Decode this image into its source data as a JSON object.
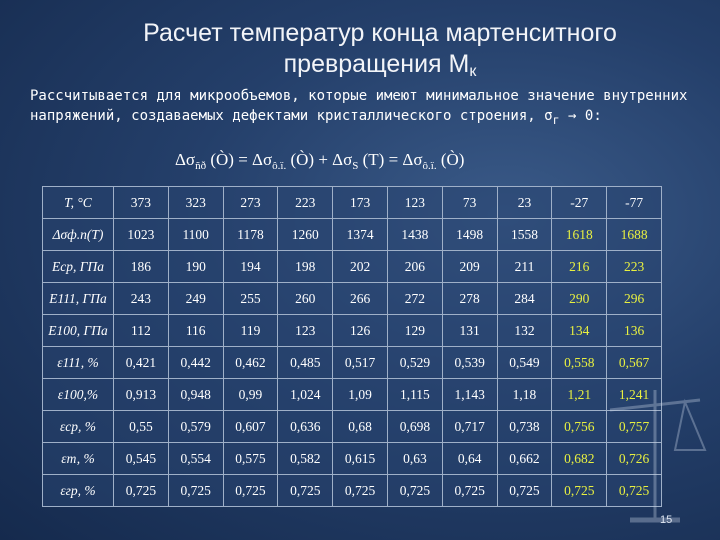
{
  "title_line1": "Расчет температур конца мартенситного",
  "title_line2": "превращения М",
  "title_sub": "к",
  "intro": "Рассчитывается для микрообъемов, которые имеют минимальное значение внутренних напряжений, создаваемых дефектами кристаллического строения, σ",
  "intro_sub": "г",
  "intro_tail": " → 0:",
  "formula": {
    "lhs": "Δσ",
    "lhs_sub": "ñð",
    "arg1": "(Ò) = Δσ",
    "sub2": "ô.ï.",
    "arg2": "(Ò) + Δσ",
    "sub3": "S",
    "arg3": "(T) = Δσ",
    "sub4": "ô.ï.",
    "arg4": "(Ò)"
  },
  "table": {
    "rows": [
      {
        "label": "T, °C",
        "cells": [
          "373",
          "323",
          "273",
          "223",
          "173",
          "123",
          "73",
          "23",
          "-27",
          "-77"
        ]
      },
      {
        "label": "Δσф.п(T)",
        "cells": [
          "1023",
          "1100",
          "1178",
          "1260",
          "1374",
          "1438",
          "1498",
          "1558",
          "1618",
          "1688"
        ]
      },
      {
        "label": "Eср, ГПа",
        "cells": [
          "186",
          "190",
          "194",
          "198",
          "202",
          "206",
          "209",
          "211",
          "216",
          "223"
        ]
      },
      {
        "label": "E111, ГПа",
        "cells": [
          "243",
          "249",
          "255",
          "260",
          "266",
          "272",
          "278",
          "284",
          "290",
          "296"
        ]
      },
      {
        "label": "E100, ГПа",
        "cells": [
          "112",
          "116",
          "119",
          "123",
          "126",
          "129",
          "131",
          "132",
          "134",
          "136"
        ]
      },
      {
        "label": "ε111, %",
        "cells": [
          "0,421",
          "0,442",
          "0,462",
          "0,485",
          "0,517",
          "0,529",
          "0,539",
          "0,549",
          "0,558",
          "0,567"
        ]
      },
      {
        "label": "ε100,%",
        "cells": [
          "0,913",
          "0,948",
          "0,99",
          "1,024",
          "1,09",
          "1,115",
          "1,143",
          "1,18",
          "1,21",
          "1,241"
        ]
      },
      {
        "label": "εср, %",
        "cells": [
          "0,55",
          "0,579",
          "0,607",
          "0,636",
          "0,68",
          "0,698",
          "0,717",
          "0,738",
          "0,756",
          "0,757"
        ]
      },
      {
        "label": "εт, %",
        "cells": [
          "0,545",
          "0,554",
          "0,575",
          "0,582",
          "0,615",
          "0,63",
          "0,64",
          "0,662",
          "0,682",
          "0,726"
        ]
      },
      {
        "label": "εгр, %",
        "cells": [
          "0,725",
          "0,725",
          "0,725",
          "0,725",
          "0,725",
          "0,725",
          "0,725",
          "0,725",
          "0,725",
          "0,725"
        ]
      }
    ]
  },
  "highlight_color": "#e8f040",
  "page_number": "15"
}
